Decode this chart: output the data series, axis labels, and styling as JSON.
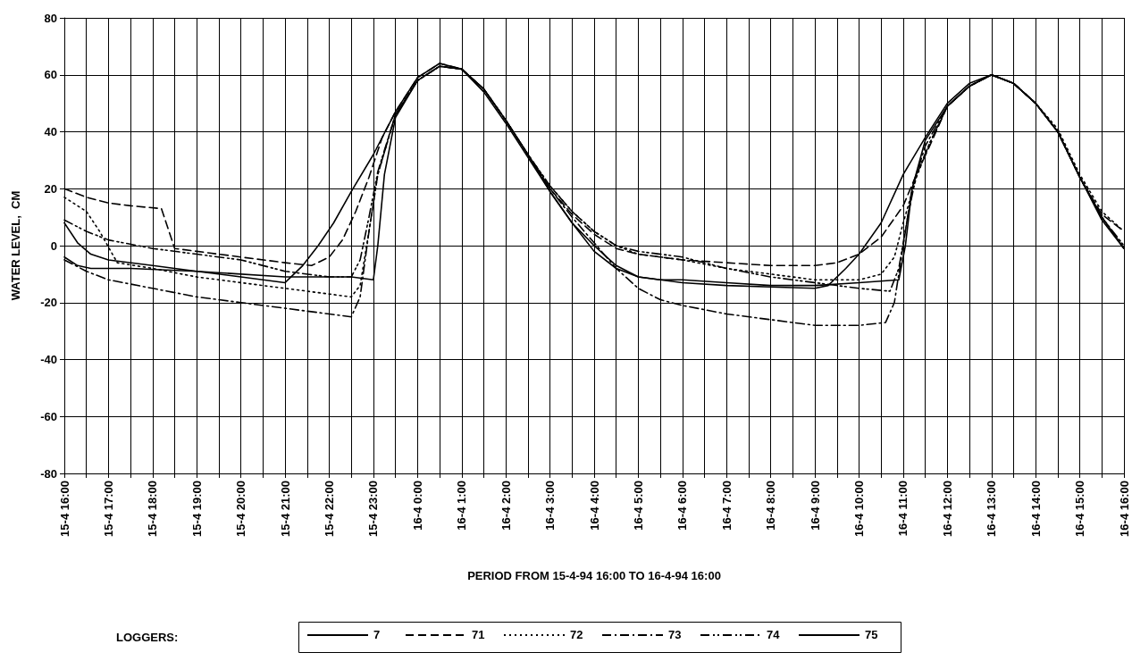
{
  "chart_data": {
    "type": "line",
    "xlabel": "PERIOD FROM 15-4-94 16:00 TO 16-4-94 16:00",
    "ylabel": "WATER LEVEL,  CM",
    "legend_title": "LOGGERS:",
    "legend": "bottom",
    "grid": true,
    "marker": "none",
    "xlim": [
      "--04-15T16:00",
      "--04-16T16:00"
    ],
    "ylim": [
      -80,
      80
    ],
    "yticks": [
      -80,
      -60,
      -40,
      -20,
      0,
      20,
      40,
      60,
      80
    ],
    "xticks": [
      {
        "value": "--04-15T16:00",
        "label": "15-4 16:00"
      },
      {
        "value": "--04-15T16:30",
        "label": null
      },
      {
        "value": "--04-15T17:00",
        "label": "15-4 17:00"
      },
      {
        "value": "--04-15T17:30",
        "label": null
      },
      {
        "value": "--04-15T18:00",
        "label": "15-4 18:00"
      },
      {
        "value": "--04-15T18:30",
        "label": null
      },
      {
        "value": "--04-15T19:00",
        "label": "15-4 19:00"
      },
      {
        "value": "--04-15T19:30",
        "label": null
      },
      {
        "value": "--04-15T20:00",
        "label": "15-4 20:00"
      },
      {
        "value": "--04-15T20:30",
        "label": null
      },
      {
        "value": "--04-15T21:00",
        "label": "15-4 21:00"
      },
      {
        "value": "--04-15T21:30",
        "label": null
      },
      {
        "value": "--04-15T22:00",
        "label": "15-4 22:00"
      },
      {
        "value": "--04-15T22:30",
        "label": null
      },
      {
        "value": "--04-15T23:00",
        "label": "15-4 23:00"
      },
      {
        "value": "--04-15T23:30",
        "label": null
      },
      {
        "value": "--04-16T00:00",
        "label": "16-4 0:00"
      },
      {
        "value": "--04-16T00:30",
        "label": null
      },
      {
        "value": "--04-16T01:00",
        "label": "16-4 1:00"
      },
      {
        "value": "--04-16T01:30",
        "label": null
      },
      {
        "value": "--04-16T02:00",
        "label": "16-4 2:00"
      },
      {
        "value": "--04-16T02:30",
        "label": null
      },
      {
        "value": "--04-16T03:00",
        "label": "16-4 3:00"
      },
      {
        "value": "--04-16T03:30",
        "label": null
      },
      {
        "value": "--04-16T04:00",
        "label": "16-4 4:00"
      },
      {
        "value": "--04-16T04:30",
        "label": null
      },
      {
        "value": "--04-16T05:00",
        "label": "16-4 5:00"
      },
      {
        "value": "--04-16T05:30",
        "label": null
      },
      {
        "value": "--04-16T06:00",
        "label": "16-4 6:00"
      },
      {
        "value": "--04-16T06:30",
        "label": null
      },
      {
        "value": "--04-16T07:00",
        "label": "16-4 7:00"
      },
      {
        "value": "--04-16T07:30",
        "label": null
      },
      {
        "value": "--04-16T08:00",
        "label": "16-4 8:00"
      },
      {
        "value": "--04-16T08:30",
        "label": null
      },
      {
        "value": "--04-16T09:00",
        "label": "16-4 9:00"
      },
      {
        "value": "--04-16T09:30",
        "label": null
      },
      {
        "value": "--04-16T10:00",
        "label": "16-4 10:00"
      },
      {
        "value": "--04-16T10:30",
        "label": null
      },
      {
        "value": "--04-16T11:00",
        "label": "16-4 11:00"
      },
      {
        "value": "--04-16T11:30",
        "label": null
      },
      {
        "value": "--04-16T12:00",
        "label": "16-4 12:00"
      },
      {
        "value": "--04-16T12:30",
        "label": null
      },
      {
        "value": "--04-16T13:00",
        "label": "16-4 13:00"
      },
      {
        "value": "--04-16T13:30",
        "label": null
      },
      {
        "value": "--04-16T14:00",
        "label": "16-4 14:00"
      },
      {
        "value": "--04-16T14:30",
        "label": null
      },
      {
        "value": "--04-16T15:00",
        "label": "16-4 15:00"
      },
      {
        "value": "--04-16T15:30",
        "label": null
      },
      {
        "value": "--04-16T16:00",
        "label": "16-4 16:00"
      }
    ],
    "series": [
      {
        "name": "7",
        "color": "#000000",
        "line_style": "solid",
        "x": [
          "--04-15T16:00",
          "--04-15T16:18",
          "--04-15T16:36",
          "--04-15T17:00",
          "--04-15T18:00",
          "--04-15T19:00",
          "--04-15T20:00",
          "--04-15T21:00",
          "--04-15T21:24",
          "--04-15T21:45",
          "--04-15T22:06",
          "--04-15T22:30",
          "--04-15T23:00",
          "--04-15T23:30",
          "--04-16T00:00",
          "--04-16T00:30",
          "--04-16T01:00",
          "--04-16T01:30",
          "--04-16T02:00",
          "--04-16T02:30",
          "--04-16T03:00",
          "--04-16T03:30",
          "--04-16T04:00",
          "--04-16T04:30",
          "--04-16T05:00",
          "--04-16T05:30",
          "--04-16T06:00",
          "--04-16T07:00",
          "--04-16T08:00",
          "--04-16T09:00",
          "--04-16T09:18",
          "--04-16T09:42",
          "--04-16T10:00",
          "--04-16T10:30",
          "--04-16T11:00",
          "--04-16T11:30",
          "--04-16T12:00",
          "--04-16T12:30",
          "--04-16T13:00",
          "--04-16T13:30",
          "--04-16T14:00",
          "--04-16T14:30",
          "--04-16T15:00",
          "--04-16T15:30",
          "--04-16T16:00"
        ],
        "values": [
          8,
          1,
          -3,
          -5,
          -7,
          -9,
          -11,
          -13,
          -7,
          0,
          8,
          19,
          32,
          47,
          59,
          64,
          62,
          54,
          43,
          31,
          19,
          8,
          0,
          -7,
          -11,
          -12,
          -13,
          -14,
          -14.5,
          -15,
          -14,
          -8,
          -3,
          8,
          25,
          38,
          50,
          57,
          60,
          57,
          50,
          40,
          24,
          9,
          -1
        ]
      },
      {
        "name": "71",
        "color": "#000000",
        "line_style": "dashed",
        "x": [
          "--04-15T16:00",
          "--04-15T16:30",
          "--04-15T17:00",
          "--04-15T17:30",
          "--04-15T18:12",
          "--04-15T18:30",
          "--04-15T19:00",
          "--04-15T20:00",
          "--04-15T21:00",
          "--04-15T21:36",
          "--04-15T22:00",
          "--04-15T22:18",
          "--04-15T22:36",
          "--04-15T22:54",
          "--04-15T23:12",
          "--04-15T23:30",
          "--04-16T00:00",
          "--04-16T00:30",
          "--04-16T01:00",
          "--04-16T01:30",
          "--04-16T02:00",
          "--04-16T02:30",
          "--04-16T03:00",
          "--04-16T03:30",
          "--04-16T04:00",
          "--04-16T04:30",
          "--04-16T05:00",
          "--04-16T06:00",
          "--04-16T07:00",
          "--04-16T08:00",
          "--04-16T09:00",
          "--04-16T09:30",
          "--04-16T10:00",
          "--04-16T10:30",
          "--04-16T11:00",
          "--04-16T11:18",
          "--04-16T11:36",
          "--04-16T12:00",
          "--04-16T12:30",
          "--04-16T13:00",
          "--04-16T13:30",
          "--04-16T14:00",
          "--04-16T14:30",
          "--04-16T15:00",
          "--04-16T15:30",
          "--04-16T16:00"
        ],
        "values": [
          20,
          17,
          15,
          14,
          13,
          -1,
          -2,
          -4,
          -6,
          -7,
          -4,
          2,
          12,
          24,
          38,
          47,
          59,
          64,
          62,
          55,
          44,
          32,
          20,
          11,
          4,
          -1,
          -3,
          -5,
          -6,
          -7,
          -7,
          -6,
          -3,
          3,
          14,
          25,
          35,
          49,
          56,
          60,
          57,
          50,
          40,
          24,
          11,
          5
        ]
      },
      {
        "name": "72",
        "color": "#000000",
        "line_style": "dotted",
        "x": [
          "--04-15T16:00",
          "--04-15T16:30",
          "--04-15T16:48",
          "--04-15T17:12",
          "--04-15T18:00",
          "--04-15T19:00",
          "--04-15T20:00",
          "--04-15T21:00",
          "--04-15T22:00",
          "--04-15T22:30",
          "--04-15T22:42",
          "--04-15T22:54",
          "--04-15T23:06",
          "--04-15T23:30",
          "--04-16T00:00",
          "--04-16T00:30",
          "--04-16T01:00",
          "--04-16T01:30",
          "--04-16T02:00",
          "--04-16T02:30",
          "--04-16T03:00",
          "--04-16T03:30",
          "--04-16T04:00",
          "--04-16T04:30",
          "--04-16T05:00",
          "--04-16T06:00",
          "--04-16T07:00",
          "--04-16T08:00",
          "--04-16T09:00",
          "--04-16T10:00",
          "--04-16T10:30",
          "--04-16T10:48",
          "--04-16T11:00",
          "--04-16T11:18",
          "--04-16T11:36",
          "--04-16T12:00",
          "--04-16T12:30",
          "--04-16T13:00",
          "--04-16T13:30",
          "--04-16T14:00",
          "--04-16T14:30",
          "--04-16T15:00",
          "--04-16T15:30",
          "--04-16T16:00"
        ],
        "values": [
          17,
          12,
          5,
          -6,
          -8,
          -11,
          -13,
          -15,
          -17,
          -18,
          -14,
          5,
          25,
          46,
          58,
          63,
          62,
          55,
          44,
          32,
          21,
          12,
          5,
          0,
          -3,
          -5,
          -8,
          -10,
          -12,
          -12,
          -10,
          -4,
          8,
          24,
          36,
          49,
          56,
          60,
          57,
          50,
          41,
          25,
          12,
          5
        ]
      },
      {
        "name": "73",
        "color": "#000000",
        "line_style": "dashdot",
        "x": [
          "--04-15T16:00",
          "--04-15T16:30",
          "--04-15T17:00",
          "--04-15T18:00",
          "--04-15T19:00",
          "--04-15T20:00",
          "--04-15T21:00",
          "--04-15T22:00",
          "--04-15T22:30",
          "--04-15T22:42",
          "--04-15T22:54",
          "--04-15T23:06",
          "--04-15T23:30",
          "--04-16T00:00",
          "--04-16T00:30",
          "--04-16T01:00",
          "--04-16T01:30",
          "--04-16T02:00",
          "--04-16T02:30",
          "--04-16T03:00",
          "--04-16T03:30",
          "--04-16T04:00",
          "--04-16T04:30",
          "--04-16T05:00",
          "--04-16T05:30",
          "--04-16T06:00",
          "--04-16T07:00",
          "--04-16T08:00",
          "--04-16T09:00",
          "--04-16T10:00",
          "--04-16T10:36",
          "--04-16T10:48",
          "--04-16T11:00",
          "--04-16T11:12",
          "--04-16T11:30",
          "--04-16T12:00",
          "--04-16T12:30",
          "--04-16T13:00",
          "--04-16T13:30",
          "--04-16T14:00",
          "--04-16T14:30",
          "--04-16T15:00",
          "--04-16T15:30",
          "--04-16T16:00"
        ],
        "values": [
          -5,
          -9,
          -12,
          -15,
          -18,
          -20,
          -22,
          -24,
          -25,
          -18,
          5,
          25,
          46,
          58,
          63,
          62,
          55,
          44,
          32,
          20,
          10,
          1,
          -8,
          -15,
          -19,
          -21,
          -24,
          -26,
          -28,
          -28,
          -27,
          -20,
          0,
          20,
          35,
          49,
          56,
          60,
          57,
          50,
          40,
          24,
          10,
          -1
        ]
      },
      {
        "name": "74",
        "color": "#000000",
        "line_style": "dashdotdot",
        "x": [
          "--04-15T16:00",
          "--04-15T16:30",
          "--04-15T17:00",
          "--04-15T18:00",
          "--04-15T19:00",
          "--04-15T20:00",
          "--04-15T21:00",
          "--04-15T22:00",
          "--04-15T22:30",
          "--04-15T22:42",
          "--04-15T22:54",
          "--04-15T23:06",
          "--04-15T23:30",
          "--04-16T00:00",
          "--04-16T00:30",
          "--04-16T01:00",
          "--04-16T01:30",
          "--04-16T02:00",
          "--04-16T02:30",
          "--04-16T03:00",
          "--04-16T03:30",
          "--04-16T04:00",
          "--04-16T04:30",
          "--04-16T05:00",
          "--04-16T06:00",
          "--04-16T07:00",
          "--04-16T08:00",
          "--04-16T09:00",
          "--04-16T10:00",
          "--04-16T10:42",
          "--04-16T10:54",
          "--04-16T11:06",
          "--04-16T11:18",
          "--04-16T11:36",
          "--04-16T12:00",
          "--04-16T12:30",
          "--04-16T13:00",
          "--04-16T13:30",
          "--04-16T14:00",
          "--04-16T14:30",
          "--04-16T15:00",
          "--04-16T15:30",
          "--04-16T16:00"
        ],
        "values": [
          9,
          5,
          2,
          -1,
          -3,
          -5,
          -9,
          -11,
          -11,
          -5,
          10,
          26,
          46,
          58,
          63,
          62,
          55,
          44,
          32,
          21,
          12,
          5,
          0,
          -2,
          -4,
          -8,
          -11,
          -13,
          -15,
          -16,
          -8,
          10,
          25,
          36,
          49,
          56,
          60,
          57,
          50,
          40,
          24,
          10,
          0
        ]
      },
      {
        "name": "75",
        "color": "#000000",
        "line_style": "solid",
        "x": [
          "--04-15T16:00",
          "--04-15T16:18",
          "--04-15T16:36",
          "--04-15T17:30",
          "--04-15T19:00",
          "--04-15T21:00",
          "--04-15T22:30",
          "--04-15T23:00",
          "--04-15T23:06",
          "--04-15T23:15",
          "--04-15T23:30",
          "--04-16T00:00",
          "--04-16T00:30",
          "--04-16T01:00",
          "--04-16T01:30",
          "--04-16T02:00",
          "--04-16T02:30",
          "--04-16T03:00",
          "--04-16T03:30",
          "--04-16T04:00",
          "--04-16T04:30",
          "--04-16T05:00",
          "--04-16T05:30",
          "--04-16T06:00",
          "--04-16T07:00",
          "--04-16T08:00",
          "--04-16T09:00",
          "--04-16T10:00",
          "--04-16T10:54",
          "--04-16T11:03",
          "--04-16T11:12",
          "--04-16T11:30",
          "--04-16T12:00",
          "--04-16T12:30",
          "--04-16T13:00",
          "--04-16T13:30",
          "--04-16T14:00",
          "--04-16T14:30",
          "--04-16T15:00",
          "--04-16T15:30",
          "--04-16T16:00"
        ],
        "values": [
          -4,
          -7,
          -8,
          -8,
          -9,
          -11,
          -11,
          -12,
          0,
          25,
          45,
          58,
          63,
          62,
          55,
          44,
          32,
          19,
          8,
          -2,
          -8,
          -11,
          -12,
          -12,
          -13,
          -14,
          -14,
          -13,
          -12,
          0,
          20,
          37,
          49,
          56,
          60,
          57,
          50,
          40,
          24,
          10,
          -1
        ]
      }
    ]
  }
}
